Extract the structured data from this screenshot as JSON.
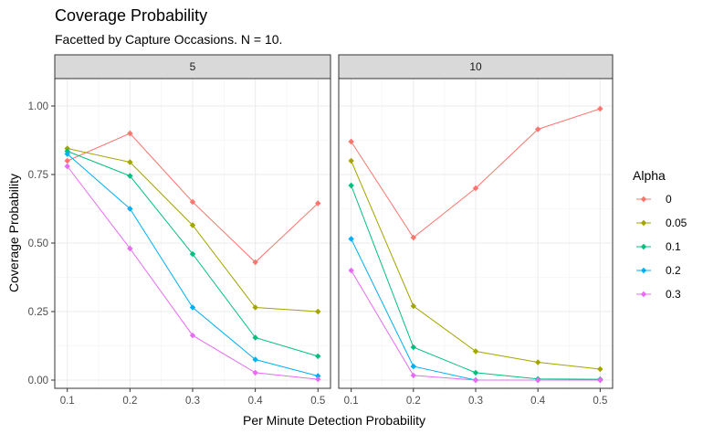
{
  "chart_data": {
    "type": "line",
    "title": "Coverage Probability",
    "subtitle": "Facetted by Capture Occasions. N = 10.",
    "xlabel": "Per Minute Detection Probability",
    "ylabel": "Coverage Probability",
    "x": [
      0.1,
      0.2,
      0.3,
      0.4,
      0.5
    ],
    "x_ticks": [
      "0.1",
      "0.2",
      "0.3",
      "0.4",
      "0.5"
    ],
    "y_ticks": [
      "0.00",
      "0.25",
      "0.50",
      "0.75",
      "1.00"
    ],
    "ylim": [
      -0.03,
      1.1
    ],
    "xlim": [
      0.08,
      0.52
    ],
    "grid": true,
    "legend": {
      "title": "Alpha",
      "position": "right",
      "entries": [
        {
          "label": "0",
          "color": "#F8766D"
        },
        {
          "label": "0.05",
          "color": "#A3A500"
        },
        {
          "label": "0.1",
          "color": "#00BF7D"
        },
        {
          "label": "0.2",
          "color": "#00B0F6"
        },
        {
          "label": "0.3",
          "color": "#E76BF3"
        }
      ]
    },
    "facets": [
      {
        "label": "5",
        "series": [
          {
            "name": "0",
            "values": [
              0.8,
              0.9,
              0.65,
              0.43,
              0.645
            ]
          },
          {
            "name": "0.05",
            "values": [
              0.845,
              0.795,
              0.565,
              0.265,
              0.25
            ]
          },
          {
            "name": "0.1",
            "values": [
              0.835,
              0.745,
              0.46,
              0.155,
              0.087
            ]
          },
          {
            "name": "0.2",
            "values": [
              0.825,
              0.625,
              0.265,
              0.075,
              0.015
            ]
          },
          {
            "name": "0.3",
            "values": [
              0.78,
              0.48,
              0.163,
              0.027,
              0.003
            ]
          }
        ]
      },
      {
        "label": "10",
        "series": [
          {
            "name": "0",
            "values": [
              0.87,
              0.52,
              0.7,
              0.915,
              0.99
            ]
          },
          {
            "name": "0.05",
            "values": [
              0.8,
              0.27,
              0.105,
              0.065,
              0.04
            ]
          },
          {
            "name": "0.1",
            "values": [
              0.71,
              0.12,
              0.027,
              0.004,
              0.003
            ]
          },
          {
            "name": "0.2",
            "values": [
              0.515,
              0.05,
              0.0,
              0.0,
              0.0
            ]
          },
          {
            "name": "0.3",
            "values": [
              0.4,
              0.017,
              0.0,
              0.0,
              0.0
            ]
          }
        ]
      }
    ]
  }
}
